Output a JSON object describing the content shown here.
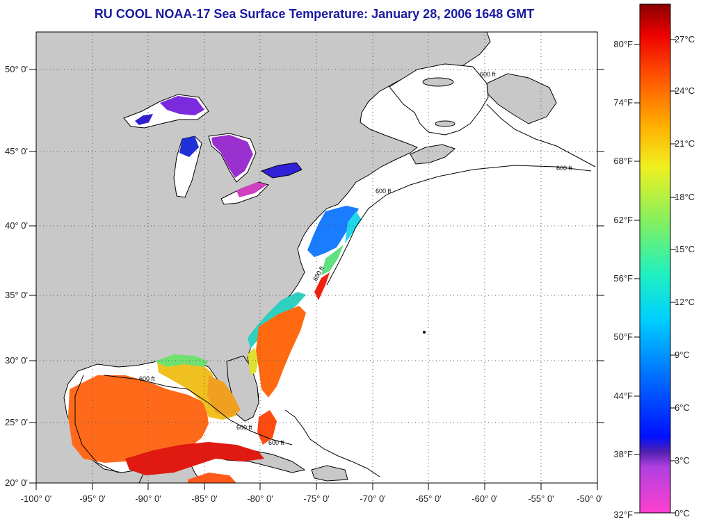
{
  "title": "RU COOL  NOAA-17  Sea Surface Temperature:  January 28, 2006 1648 GMT",
  "lon_labels": [
    "-100° 0'",
    "-95° 0'",
    "-90° 0'",
    "-85° 0'",
    "-80° 0'",
    "-75° 0'",
    "-70° 0'",
    "-65° 0'",
    "-60° 0'",
    "-55° 0'",
    "-50° 0'"
  ],
  "lat_labels": [
    "50° 0'",
    "45° 0'",
    "40° 0'",
    "35° 0'",
    "30° 0'",
    "25° 0'",
    "20° 0'"
  ],
  "colorbar": {
    "celsius_labels": [
      "27°C",
      "24°C",
      "21°C",
      "18°C",
      "15°C",
      "12°C",
      "9°C",
      "6°C",
      "3°C",
      "0°C"
    ],
    "fahrenheit_labels": [
      "80°F",
      "74°F",
      "68°F",
      "62°F",
      "56°F",
      "50°F",
      "44°F",
      "38°F",
      "32°F"
    ]
  },
  "map": {
    "lon_range": [
      -100,
      -50
    ],
    "lat_range": [
      20,
      52.5
    ],
    "land_color": "#c8c8c8",
    "ocean_color": "#ffffff",
    "contour_label": "600 ft"
  },
  "colors": {
    "title": "#1a1aa0"
  }
}
